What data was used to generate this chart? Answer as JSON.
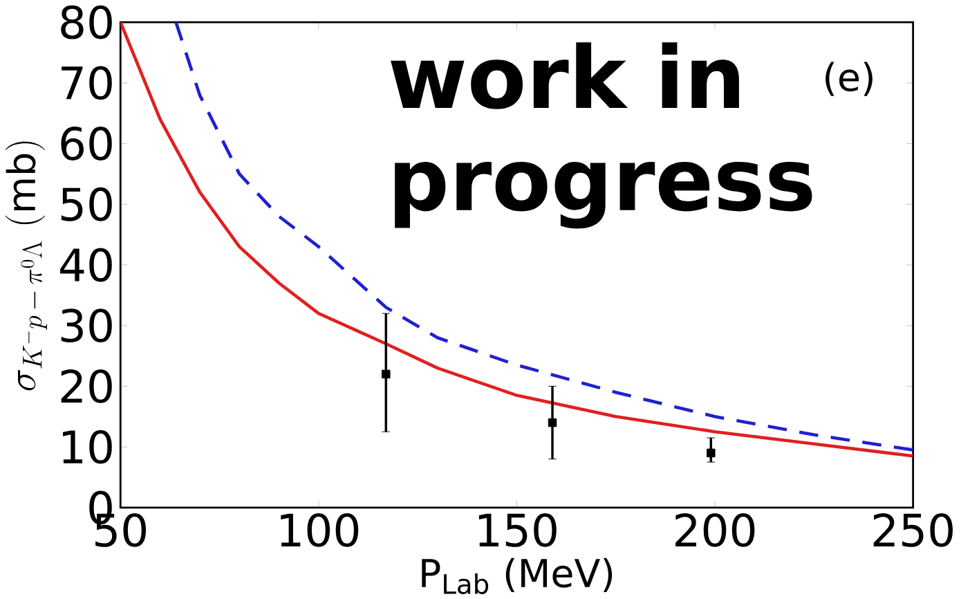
{
  "chart_data": {
    "type": "line",
    "xlabel": "P$_{Lab}$ (MeV)",
    "ylabel": "\\sigma_{K^{-}p\\,-\\,\\pi^{0}\\Lambda}\\ (\\mathrm{mb})",
    "xlim": [
      50,
      250
    ],
    "ylim": [
      0,
      80
    ],
    "xticks": [
      50,
      100,
      150,
      200,
      250
    ],
    "yticks": [
      0,
      10,
      20,
      30,
      40,
      50,
      60,
      70,
      80
    ],
    "annotations": [
      "work in progress",
      "(e)"
    ],
    "series": [
      {
        "type": "line",
        "color": "#e02020",
        "line_style": "solid",
        "marker": "none",
        "x": [
          50,
          60,
          70,
          80,
          90,
          100,
          117,
          130,
          150,
          175,
          200,
          225,
          250
        ],
        "values": [
          80,
          64,
          52,
          43,
          37,
          32,
          27,
          23,
          18.5,
          15,
          12.5,
          10.5,
          8.5
        ]
      },
      {
        "type": "line",
        "color": "#2020d0",
        "line_style": "dashed",
        "marker": "none",
        "x": [
          64,
          70,
          80,
          90,
          100,
          117,
          130,
          150,
          175,
          200,
          225,
          250
        ],
        "values": [
          80,
          68,
          55,
          48,
          43,
          33,
          28,
          23.5,
          19,
          15,
          12,
          9.5
        ]
      },
      {
        "type": "scatter",
        "color": "#000000",
        "marker": "square",
        "x": [
          117,
          159,
          199
        ],
        "values": [
          22,
          14,
          9
        ],
        "errors": [
          [
            12.5,
            32
          ],
          [
            8,
            20
          ],
          [
            7.5,
            11.5
          ]
        ]
      }
    ]
  }
}
